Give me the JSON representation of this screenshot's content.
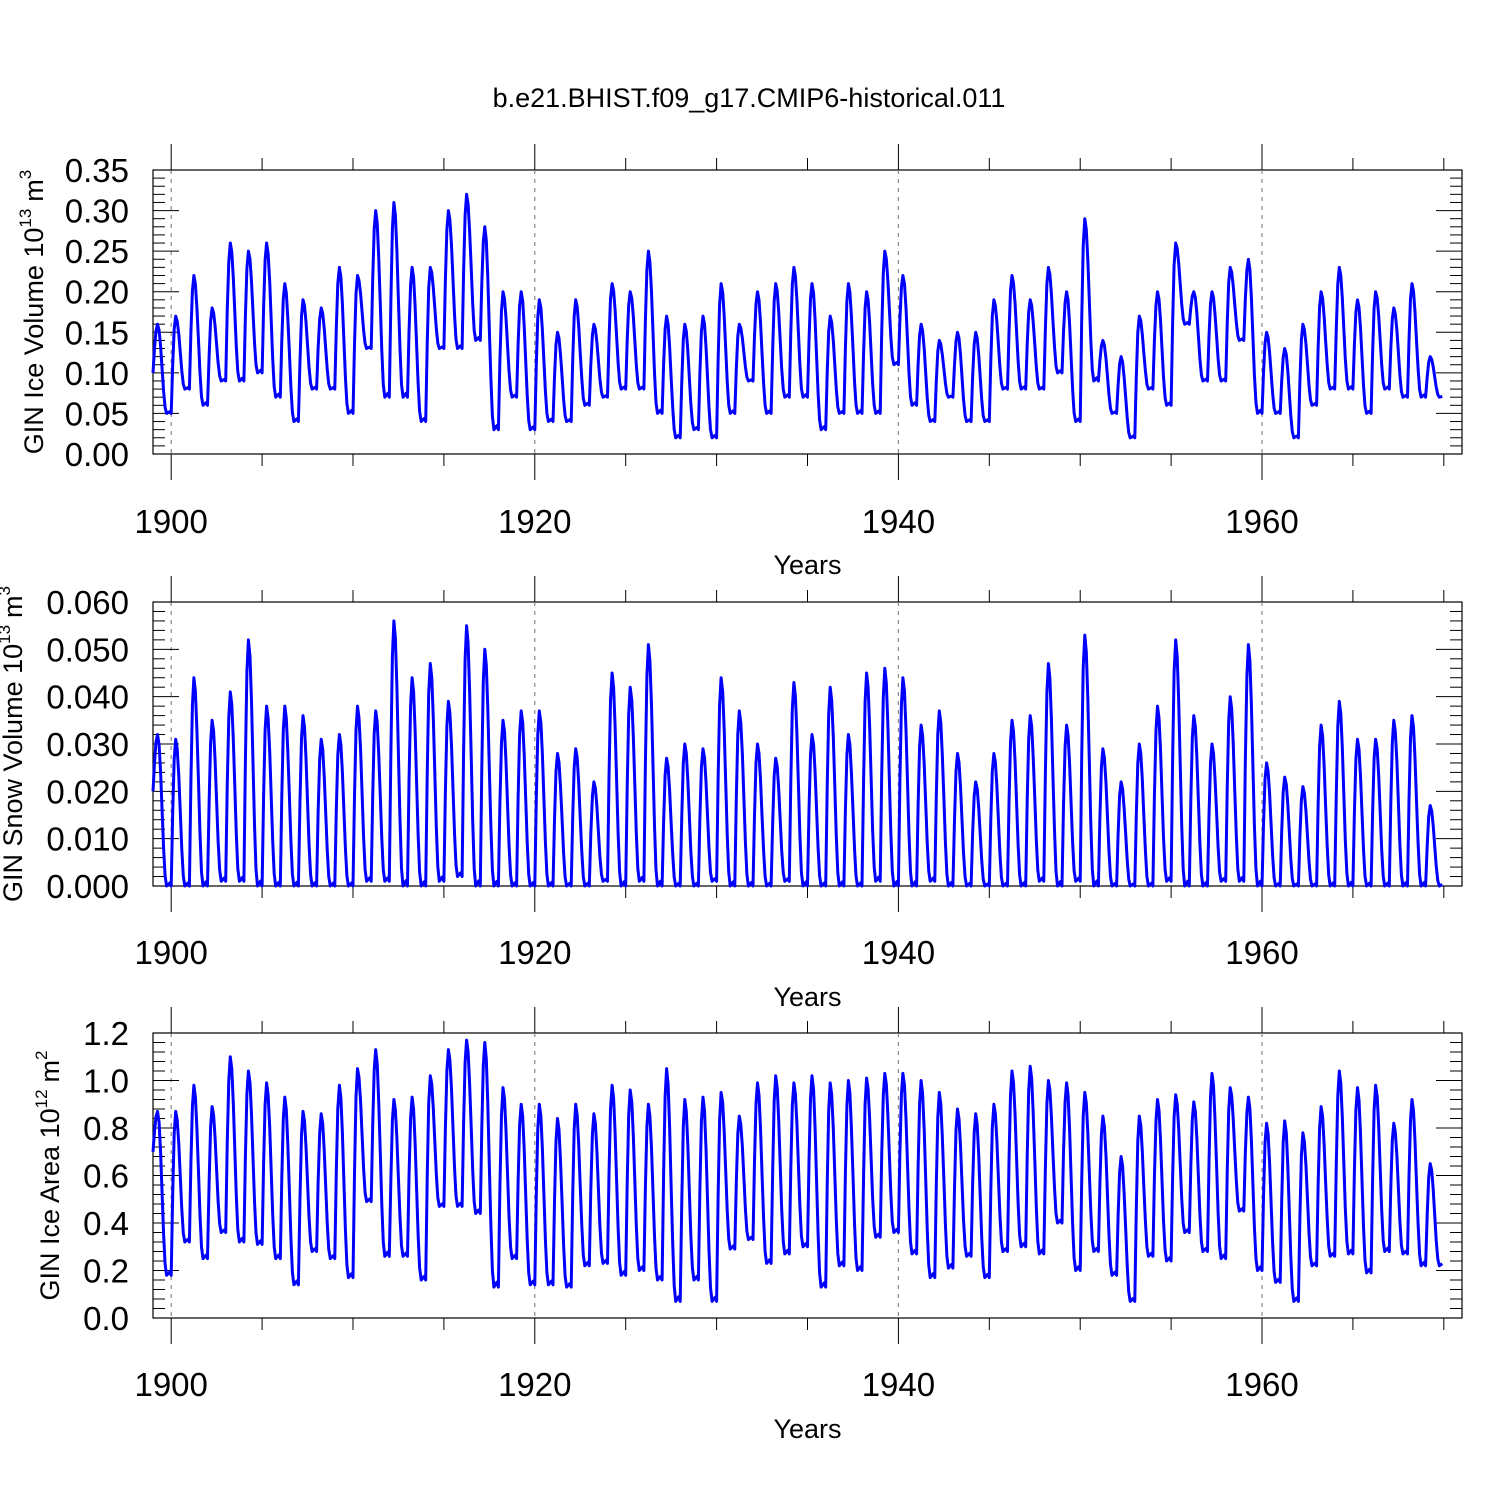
{
  "title": "b.e21.BHIST.f09_g17.CMIP6-historical.011",
  "series_color": "#0000ff",
  "chart_data": [
    {
      "type": "line",
      "name": "ice-volume",
      "ylabel_main": "GIN Ice Volume 10",
      "ylabel_exp": "13",
      "ylabel_unit": "m",
      "ylabel_unit_exp": "3",
      "xlabel": "Years",
      "xlim": [
        1899,
        1971
      ],
      "ylim": [
        0,
        0.35
      ],
      "yticks": [
        "0.00",
        "0.05",
        "0.10",
        "0.15",
        "0.20",
        "0.25",
        "0.30",
        "0.35"
      ],
      "yticks_values": [
        0,
        0.05,
        0.1,
        0.15,
        0.2,
        0.25,
        0.3,
        0.35
      ],
      "xticks": [
        "1900",
        "1920",
        "1940",
        "1960"
      ],
      "xticks_values": [
        1900,
        1920,
        1940,
        1960
      ],
      "annual_max": [
        0.16,
        0.17,
        0.22,
        0.18,
        0.26,
        0.25,
        0.26,
        0.21,
        0.19,
        0.18,
        0.23,
        0.22,
        0.3,
        0.31,
        0.23,
        0.23,
        0.3,
        0.32,
        0.28,
        0.2,
        0.2,
        0.19,
        0.15,
        0.19,
        0.16,
        0.21,
        0.2,
        0.25,
        0.17,
        0.16,
        0.17,
        0.21,
        0.16,
        0.2,
        0.21,
        0.23,
        0.21,
        0.17,
        0.21,
        0.2,
        0.25,
        0.22,
        0.16,
        0.14,
        0.15,
        0.15,
        0.19,
        0.22,
        0.19,
        0.23,
        0.2,
        0.29,
        0.14,
        0.12,
        0.17,
        0.2,
        0.26,
        0.2,
        0.2,
        0.23,
        0.24,
        0.15,
        0.13,
        0.16,
        0.2,
        0.23,
        0.19,
        0.2,
        0.18,
        0.21,
        0.12
      ],
      "annual_min": [
        0.1,
        0.05,
        0.08,
        0.06,
        0.09,
        0.09,
        0.1,
        0.07,
        0.04,
        0.08,
        0.08,
        0.05,
        0.13,
        0.07,
        0.07,
        0.04,
        0.13,
        0.13,
        0.14,
        0.03,
        0.07,
        0.03,
        0.04,
        0.04,
        0.06,
        0.07,
        0.08,
        0.08,
        0.05,
        0.02,
        0.03,
        0.02,
        0.05,
        0.09,
        0.05,
        0.07,
        0.07,
        0.03,
        0.05,
        0.05,
        0.05,
        0.11,
        0.06,
        0.04,
        0.07,
        0.04,
        0.04,
        0.08,
        0.08,
        0.08,
        0.1,
        0.04,
        0.09,
        0.05,
        0.02,
        0.08,
        0.06,
        0.16,
        0.09,
        0.09,
        0.14,
        0.05,
        0.05,
        0.02,
        0.06,
        0.08,
        0.08,
        0.05,
        0.08,
        0.07,
        0.07
      ]
    },
    {
      "type": "line",
      "name": "snow-volume",
      "ylabel_main": "GIN Snow Volume 10",
      "ylabel_exp": "13",
      "ylabel_unit": "m",
      "ylabel_unit_exp": "3",
      "xlabel": "Years",
      "xlim": [
        1899,
        1971
      ],
      "ylim": [
        0,
        0.06
      ],
      "yticks": [
        "0.000",
        "0.010",
        "0.020",
        "0.030",
        "0.040",
        "0.050",
        "0.060"
      ],
      "yticks_values": [
        0,
        0.01,
        0.02,
        0.03,
        0.04,
        0.05,
        0.06
      ],
      "xticks": [
        "1900",
        "1920",
        "1940",
        "1960"
      ],
      "xticks_values": [
        1900,
        1920,
        1940,
        1960
      ],
      "annual_max": [
        0.032,
        0.031,
        0.044,
        0.035,
        0.041,
        0.052,
        0.038,
        0.038,
        0.036,
        0.031,
        0.032,
        0.038,
        0.037,
        0.056,
        0.044,
        0.047,
        0.039,
        0.055,
        0.05,
        0.035,
        0.037,
        0.037,
        0.028,
        0.029,
        0.022,
        0.045,
        0.042,
        0.051,
        0.027,
        0.03,
        0.029,
        0.044,
        0.037,
        0.03,
        0.027,
        0.043,
        0.032,
        0.042,
        0.032,
        0.045,
        0.046,
        0.044,
        0.034,
        0.037,
        0.028,
        0.022,
        0.028,
        0.035,
        0.036,
        0.047,
        0.034,
        0.053,
        0.029,
        0.022,
        0.03,
        0.038,
        0.052,
        0.036,
        0.03,
        0.04,
        0.051,
        0.026,
        0.023,
        0.021,
        0.034,
        0.039,
        0.031,
        0.031,
        0.035,
        0.036,
        0.017
      ],
      "annual_min": [
        0.02,
        0.0,
        0.0,
        0.0,
        0.001,
        0.001,
        0.0,
        0.0,
        0.0,
        0.0,
        0.0,
        0.0,
        0.001,
        0.001,
        0.0,
        0.0,
        0.001,
        0.002,
        0.0,
        0.0,
        0.0,
        0.0,
        0.0,
        0.0,
        0.0,
        0.001,
        0.0,
        0.001,
        0.0,
        0.0,
        0.0,
        0.001,
        0.0,
        0.0,
        0.0,
        0.001,
        0.0,
        0.0,
        0.0,
        0.0,
        0.001,
        0.0,
        0.0,
        0.001,
        0.0,
        0.0,
        0.0,
        0.0,
        0.0,
        0.001,
        0.0,
        0.001,
        0.0,
        0.0,
        0.0,
        0.0,
        0.001,
        0.0,
        0.0,
        0.001,
        0.001,
        0.0,
        0.0,
        0.0,
        0.0,
        0.0,
        0.0,
        0.0,
        0.0,
        0.0,
        0.0
      ]
    },
    {
      "type": "line",
      "name": "ice-area",
      "ylabel_main": "GIN Ice Area 10",
      "ylabel_exp": "12",
      "ylabel_unit": "m",
      "ylabel_unit_exp": "2",
      "xlabel": "Years",
      "xlim": [
        1899,
        1971
      ],
      "ylim": [
        0,
        1.2
      ],
      "yticks": [
        "0.0",
        "0.2",
        "0.4",
        "0.6",
        "0.8",
        "1.0",
        "1.2"
      ],
      "yticks_values": [
        0,
        0.2,
        0.4,
        0.6,
        0.8,
        1.0,
        1.2
      ],
      "xticks": [
        "1900",
        "1920",
        "1940",
        "1960"
      ],
      "xticks_values": [
        1900,
        1920,
        1940,
        1960
      ],
      "annual_max": [
        0.87,
        0.87,
        0.98,
        0.89,
        1.1,
        1.04,
        0.99,
        0.93,
        0.87,
        0.86,
        0.98,
        1.05,
        1.13,
        0.92,
        0.93,
        1.02,
        1.13,
        1.17,
        1.16,
        0.97,
        0.9,
        0.9,
        0.84,
        0.9,
        0.86,
        0.98,
        0.96,
        0.9,
        1.05,
        0.92,
        0.93,
        0.95,
        0.85,
        0.99,
        1.02,
        0.99,
        1.02,
        0.99,
        1.0,
        1.01,
        1.03,
        1.03,
        1.0,
        0.95,
        0.88,
        0.86,
        0.9,
        1.04,
        1.06,
        1.0,
        0.99,
        0.95,
        0.85,
        0.68,
        0.85,
        0.92,
        0.94,
        0.91,
        1.03,
        0.97,
        0.93,
        0.82,
        0.83,
        0.78,
        0.89,
        1.04,
        0.97,
        0.98,
        0.82,
        0.92,
        0.65
      ],
      "annual_min": [
        0.7,
        0.18,
        0.32,
        0.25,
        0.36,
        0.32,
        0.31,
        0.25,
        0.14,
        0.28,
        0.25,
        0.17,
        0.49,
        0.26,
        0.26,
        0.16,
        0.47,
        0.47,
        0.44,
        0.13,
        0.25,
        0.14,
        0.14,
        0.13,
        0.22,
        0.23,
        0.18,
        0.2,
        0.16,
        0.07,
        0.16,
        0.07,
        0.29,
        0.33,
        0.23,
        0.27,
        0.3,
        0.13,
        0.22,
        0.2,
        0.34,
        0.36,
        0.27,
        0.17,
        0.21,
        0.26,
        0.17,
        0.28,
        0.3,
        0.27,
        0.4,
        0.2,
        0.28,
        0.18,
        0.07,
        0.26,
        0.24,
        0.36,
        0.28,
        0.25,
        0.45,
        0.2,
        0.15,
        0.07,
        0.22,
        0.26,
        0.27,
        0.19,
        0.28,
        0.27,
        0.22
      ]
    }
  ]
}
